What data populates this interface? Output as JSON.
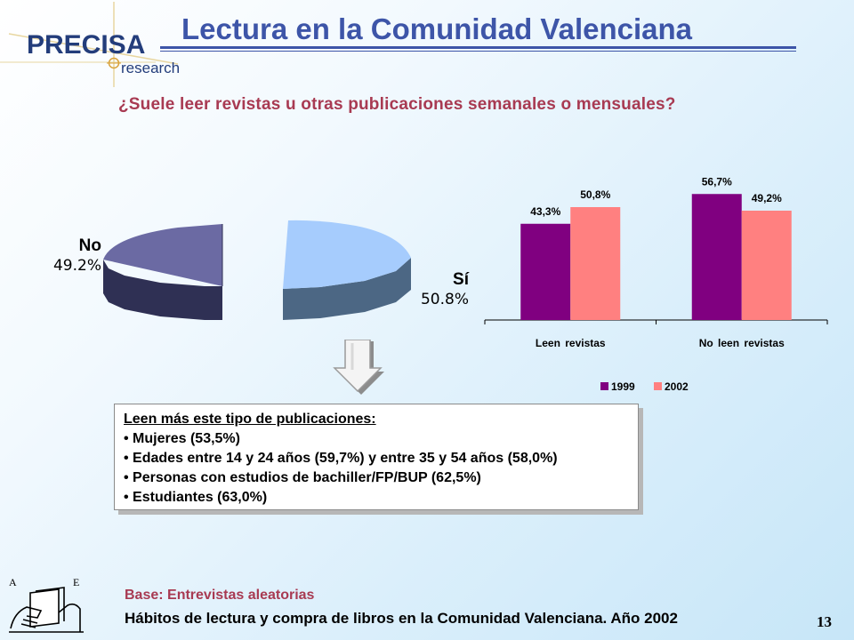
{
  "header": {
    "logo_text": "PRECISA",
    "logo_subtext": "research",
    "title": "Lectura en la Comunidad Valenciana",
    "question": "¿Suele leer revistas u otras publicaciones semanales o mensuales?"
  },
  "pie": {
    "no_label": "No",
    "no_value": "49.2%",
    "si_label": "Sí",
    "si_value": "50.8%"
  },
  "chart_data": [
    {
      "type": "pie",
      "categories": [
        "No",
        "Sí"
      ],
      "values": [
        49.2,
        50.8
      ],
      "colors": [
        "#6b6aa3",
        "#a6ccfd"
      ]
    },
    {
      "type": "bar",
      "categories": [
        "Leen revistas",
        "No leen revistas"
      ],
      "series": [
        {
          "name": "1999",
          "values": [
            43.3,
            56.7
          ],
          "labels": [
            "43,3%",
            "56,7%"
          ],
          "color": "#800080"
        },
        {
          "name": "2002",
          "values": [
            50.8,
            49.2
          ],
          "labels": [
            "50,8%",
            "49,2%"
          ],
          "color": "#ff8080"
        }
      ],
      "ylim": [
        0,
        60
      ],
      "legend": "bottom"
    }
  ],
  "info_box": {
    "heading": "Leen más este tipo de publicaciones:",
    "items": [
      "Mujeres (53,5%)",
      "Edades entre 14 y 24 años (59,7%) y entre 35 y 54 años (58,0%)",
      "Personas con estudios de bachiller/FP/BUP (62,5%)",
      "Estudiantes (63,0%)"
    ]
  },
  "footer": {
    "logo_letters": [
      "A",
      "E"
    ],
    "base": "Base: Entrevistas aleatorias",
    "source": "Hábitos de lectura y compra de libros en la Comunidad Valenciana. Año 2002",
    "page_number": "13"
  },
  "icons": {
    "down_arrow": "down-arrow-icon",
    "logo_crosshair": "crosshair-icon"
  }
}
